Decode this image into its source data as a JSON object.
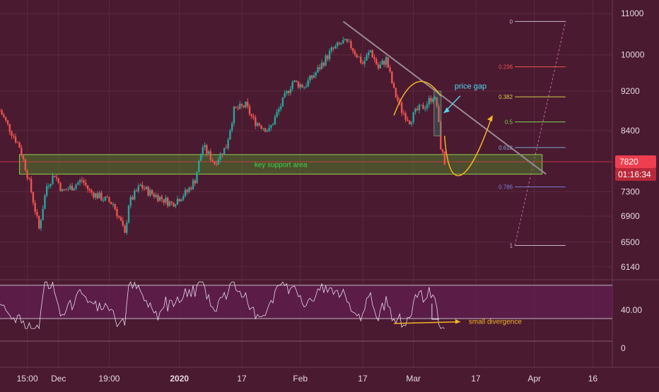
{
  "colors": {
    "background": "#4a1a30",
    "grid": "#5a2a40",
    "up_candle": "#26a69a",
    "down_candle": "#ef5350",
    "support_zone": "#4f7a2c",
    "annotation_yellow": "#f0b429",
    "annotation_cyan": "#4fd8f0",
    "trendline": "#9a8a96",
    "rsi_line": "#e8d8ea",
    "price_tag": "#ef3e4f"
  },
  "chart_data": [
    {
      "type": "candlestick",
      "title": "",
      "x_ticks": [
        {
          "label": "15:00",
          "date": "2019-11-23"
        },
        {
          "label": "Dec",
          "date": "2019-12-01"
        },
        {
          "label": "19:00",
          "date": "2019-12-14"
        },
        {
          "label": "2020",
          "date": "2020-01-01"
        },
        {
          "label": "17",
          "date": "2020-01-17"
        },
        {
          "label": "Feb",
          "date": "2020-02-01"
        },
        {
          "label": "17",
          "date": "2020-02-17"
        },
        {
          "label": "Mar",
          "date": "2020-03-01"
        },
        {
          "label": "17",
          "date": "2020-03-17"
        },
        {
          "label": "Apr",
          "date": "2020-04-01"
        },
        {
          "label": "16",
          "date": "2020-04-16"
        }
      ],
      "x_range": [
        "2019-11-16",
        "2020-04-21"
      ],
      "y_ticks": [
        11000,
        10000,
        9200,
        8400,
        7820,
        7300,
        6900,
        6500,
        6140
      ],
      "y_tick_labels": [
        "11000",
        "10000",
        "9200",
        "8400",
        "7300",
        "6900",
        "6500",
        "6140"
      ],
      "ylim": [
        6000,
        11200
      ],
      "y_scale": "log",
      "price_path": [
        [
          "2019-11-16",
          8800
        ],
        [
          "2019-11-18",
          8500
        ],
        [
          "2019-11-21",
          8100
        ],
        [
          "2019-11-23",
          7600
        ],
        [
          "2019-11-25",
          7000
        ],
        [
          "2019-11-26",
          6700
        ],
        [
          "2019-11-28",
          7400
        ],
        [
          "2019-11-30",
          7600
        ],
        [
          "2019-12-02",
          7300
        ],
        [
          "2019-12-05",
          7400
        ],
        [
          "2019-12-07",
          7500
        ],
        [
          "2019-12-09",
          7300
        ],
        [
          "2019-12-12",
          7200
        ],
        [
          "2019-12-15",
          7100
        ],
        [
          "2019-12-17",
          6800
        ],
        [
          "2019-12-18",
          6600
        ],
        [
          "2019-12-19",
          7100
        ],
        [
          "2019-12-22",
          7400
        ],
        [
          "2019-12-24",
          7300
        ],
        [
          "2019-12-27",
          7200
        ],
        [
          "2019-12-30",
          7100
        ],
        [
          "2020-01-01",
          7200
        ],
        [
          "2020-01-03",
          7300
        ],
        [
          "2020-01-05",
          7500
        ],
        [
          "2020-01-07",
          8100
        ],
        [
          "2020-01-10",
          7800
        ],
        [
          "2020-01-13",
          8100
        ],
        [
          "2020-01-15",
          8800
        ],
        [
          "2020-01-18",
          8900
        ],
        [
          "2020-01-20",
          8600
        ],
        [
          "2020-01-24",
          8400
        ],
        [
          "2020-01-27",
          8900
        ],
        [
          "2020-01-30",
          9400
        ],
        [
          "2020-02-02",
          9300
        ],
        [
          "2020-02-05",
          9600
        ],
        [
          "2020-02-09",
          10100
        ],
        [
          "2020-02-12",
          10300
        ],
        [
          "2020-02-14",
          10200
        ],
        [
          "2020-02-17",
          9800
        ],
        [
          "2020-02-19",
          10100
        ],
        [
          "2020-02-21",
          9700
        ],
        [
          "2020-02-23",
          9900
        ],
        [
          "2020-02-25",
          9200
        ],
        [
          "2020-02-27",
          8800
        ],
        [
          "2020-02-29",
          8600
        ],
        [
          "2020-03-02",
          8800
        ],
        [
          "2020-03-04",
          8900
        ],
        [
          "2020-03-06",
          9100
        ],
        [
          "2020-03-07",
          8900
        ],
        [
          "2020-03-08",
          8100
        ],
        [
          "2020-03-09",
          7800
        ]
      ],
      "support_area": {
        "low": 7600,
        "high": 7950,
        "label": "key support area"
      },
      "current_price_label": "7820",
      "countdown_label": "01:16:34",
      "fibonacci": [
        {
          "level": "0",
          "price": 10800
        },
        {
          "level": "0.236",
          "price": 9730
        },
        {
          "level": "0.382",
          "price": 9080
        },
        {
          "level": "0.5",
          "price": 8570
        },
        {
          "level": "0.618",
          "price": 8080
        },
        {
          "level": "0.786",
          "price": 7380
        },
        {
          "level": "1",
          "price": 6450
        }
      ],
      "annotations": [
        {
          "key": "price_gap",
          "text": "price gap"
        },
        {
          "key": "support",
          "text": "key support area"
        }
      ]
    },
    {
      "type": "line",
      "title": "",
      "indicator": "RSI",
      "y_ticks": [
        40,
        0
      ],
      "y_tick_labels": [
        "40.00",
        "0"
      ],
      "band": [
        30,
        70
      ],
      "ylim": [
        -10,
        75
      ],
      "annotations": [
        {
          "key": "divergence",
          "text": "small divergence"
        }
      ]
    }
  ]
}
